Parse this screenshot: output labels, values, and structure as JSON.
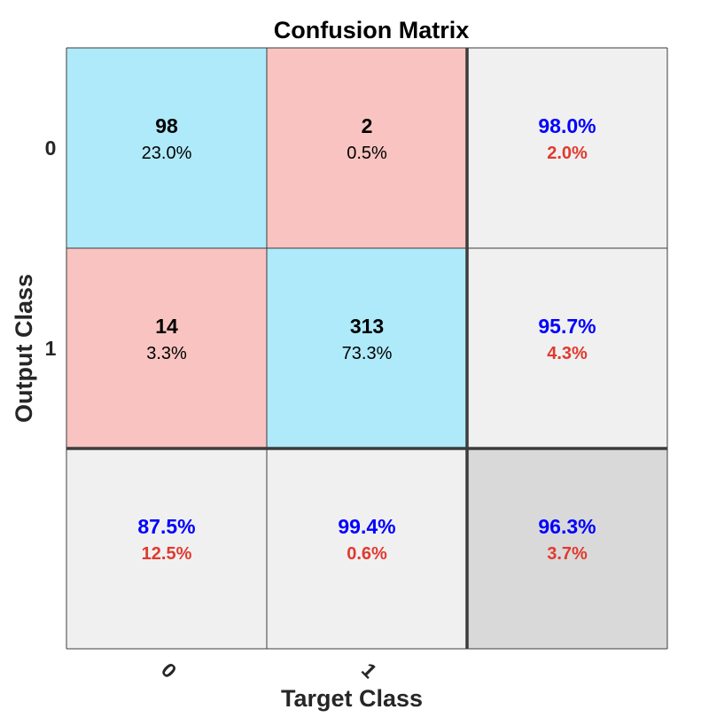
{
  "chart_data": {
    "type": "heatmap",
    "title": "Confusion Matrix",
    "xlabel": "Target Class",
    "ylabel": "Output Class",
    "classes": [
      "0",
      "1"
    ],
    "cells": [
      [
        {
          "count": "98",
          "percent": "23.0%"
        },
        {
          "count": "2",
          "percent": "0.5%"
        }
      ],
      [
        {
          "count": "14",
          "percent": "3.3%"
        },
        {
          "count": "313",
          "percent": "73.3%"
        }
      ]
    ],
    "row_summary": [
      {
        "correct": "98.0%",
        "incorrect": "2.0%"
      },
      {
        "correct": "95.7%",
        "incorrect": "4.3%"
      }
    ],
    "col_summary": [
      {
        "correct": "87.5%",
        "incorrect": "12.5%"
      },
      {
        "correct": "99.4%",
        "incorrect": "0.6%"
      }
    ],
    "overall": {
      "correct": "96.3%",
      "incorrect": "3.7%"
    }
  },
  "colors": {
    "diagonal": "#aeeafa",
    "off_diagonal": "#f8c3c0",
    "summary": "#f0f0f0",
    "overall": "#d9d9d9",
    "correct_text": "#0000ff",
    "incorrect_text": "#e03a2f",
    "grid": "#3c3c3c"
  }
}
